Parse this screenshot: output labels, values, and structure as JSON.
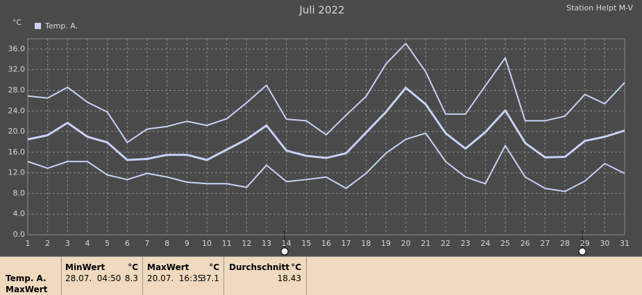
{
  "chart_data": {
    "type": "line",
    "title": "Juli 2022",
    "station": "Station Helpt M-V",
    "y_unit": "°C",
    "legend_label": "Temp. A.",
    "legend_color": "#c8d2f8",
    "categories": [
      "1",
      "2",
      "3",
      "4",
      "5",
      "6",
      "7",
      "8",
      "9",
      "10",
      "11",
      "12",
      "13",
      "14",
      "15",
      "16",
      "17",
      "18",
      "19",
      "20",
      "21",
      "22",
      "23",
      "24",
      "25",
      "26",
      "27",
      "28",
      "29",
      "30",
      "31"
    ],
    "series": [
      {
        "color": "#c8d2f8",
        "width": 2,
        "values": [
          26.9,
          26.5,
          28.6,
          25.7,
          23.8,
          17.9,
          20.5,
          21.0,
          22.0,
          21.2,
          22.5,
          25.6,
          29.0,
          22.4,
          22.1,
          19.4,
          23.2,
          26.8,
          33.1,
          37.1,
          31.6,
          23.4,
          23.4,
          28.9,
          34.3,
          22.1,
          22.1,
          23.0,
          27.2,
          25.4,
          29.5
        ]
      },
      {
        "color": "#c8d2f8",
        "width": 3,
        "values": [
          18.5,
          19.3,
          21.7,
          19.0,
          17.9,
          14.5,
          14.7,
          15.5,
          15.5,
          14.5,
          16.5,
          18.5,
          21.2,
          16.3,
          15.3,
          14.9,
          15.8,
          19.8,
          23.8,
          28.5,
          25.3,
          19.7,
          16.7,
          19.9,
          24.1,
          17.8,
          15.0,
          15.1,
          18.2,
          19.0,
          20.2
        ]
      },
      {
        "color": "#c8d2f8",
        "width": 2,
        "values": [
          14.2,
          12.9,
          14.2,
          14.2,
          11.6,
          10.7,
          11.9,
          11.2,
          10.2,
          9.9,
          9.9,
          9.2,
          13.5,
          10.3,
          10.7,
          11.2,
          9.0,
          11.9,
          15.8,
          18.5,
          19.7,
          14.2,
          11.2,
          9.9,
          17.3,
          11.2,
          9.0,
          8.4,
          10.4,
          13.8,
          11.9
        ]
      }
    ],
    "ylim": [
      0,
      38
    ],
    "yticks": [
      {
        "value": 0,
        "label": "0.0"
      },
      {
        "value": 4,
        "label": "4.0"
      },
      {
        "value": 8,
        "label": "8.0"
      },
      {
        "value": 12,
        "label": "12.0"
      },
      {
        "value": 16,
        "label": "16.0"
      },
      {
        "value": 20,
        "label": "20.0"
      },
      {
        "value": 24,
        "label": "24.0"
      },
      {
        "value": 28,
        "label": "28.0"
      },
      {
        "value": 32,
        "label": "32.0"
      },
      {
        "value": 36,
        "label": "36.0"
      }
    ],
    "grid": true
  },
  "stats": {
    "row_label": "Temp. A.",
    "row_sub": "MaxWert",
    "min": {
      "title": "MinWert",
      "unit": "°C",
      "date": "28.07.  04:50",
      "value": "8.3"
    },
    "max": {
      "title": "MaxWert",
      "unit": "°C",
      "date": "20.07.  16:35",
      "value": "37.1"
    },
    "avg": {
      "title": "Durchschnitt",
      "unit": "°C",
      "value": "18.43"
    }
  }
}
